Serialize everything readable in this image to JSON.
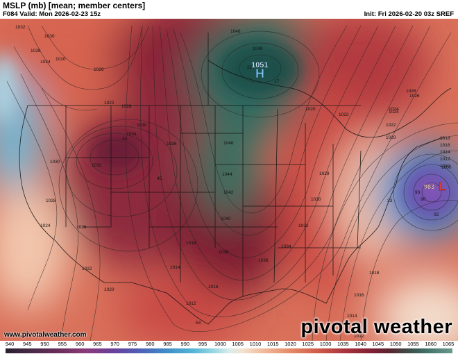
{
  "header": {
    "title": "MSLP (mb) [mean; member centers]",
    "valid": "F084 Valid: Mon 2026-02-23 15z",
    "init": "Init: Fri 2026-02-20 03z SREF"
  },
  "footer": {
    "site": "www.pivotalweather.com",
    "brand": "pivotal weather"
  },
  "map": {
    "high_center": {
      "label": "H",
      "value": "1051"
    },
    "low_center": {
      "label": "L",
      "value": "983"
    },
    "isobar_labels": [
      "1032",
      "1030",
      "1028",
      "1024",
      "1020",
      "1026",
      "1028",
      "1022",
      "1030",
      "1034",
      "1036",
      "1032",
      "1030",
      "1028",
      "1026",
      "1024",
      "1022",
      "1020",
      "1018",
      "1016",
      "1014",
      "1012",
      "1046",
      "1048",
      "1046",
      "1044",
      "1042",
      "1040",
      "1038",
      "1036",
      "1034",
      "1032",
      "1030",
      "1028",
      "1026",
      "1024",
      "1022",
      "1020",
      "1018",
      "1016",
      "1014",
      "1012",
      "1010",
      "1000",
      "1026",
      "1024",
      "1022",
      "1020",
      "1018",
      "1016",
      "1014",
      "1012"
    ],
    "member_labels": [
      "43",
      "45",
      "53",
      "22",
      "17",
      "33",
      "93",
      "90",
      "02"
    ]
  },
  "colorbar": {
    "ticks": [
      "940",
      "945",
      "950",
      "955",
      "960",
      "965",
      "970",
      "975",
      "980",
      "985",
      "990",
      "995",
      "1000",
      "1005",
      "1010",
      "1015",
      "1020",
      "1025",
      "1030",
      "1035",
      "1040",
      "1045",
      "1050",
      "1055",
      "1060",
      "1065"
    ]
  }
}
